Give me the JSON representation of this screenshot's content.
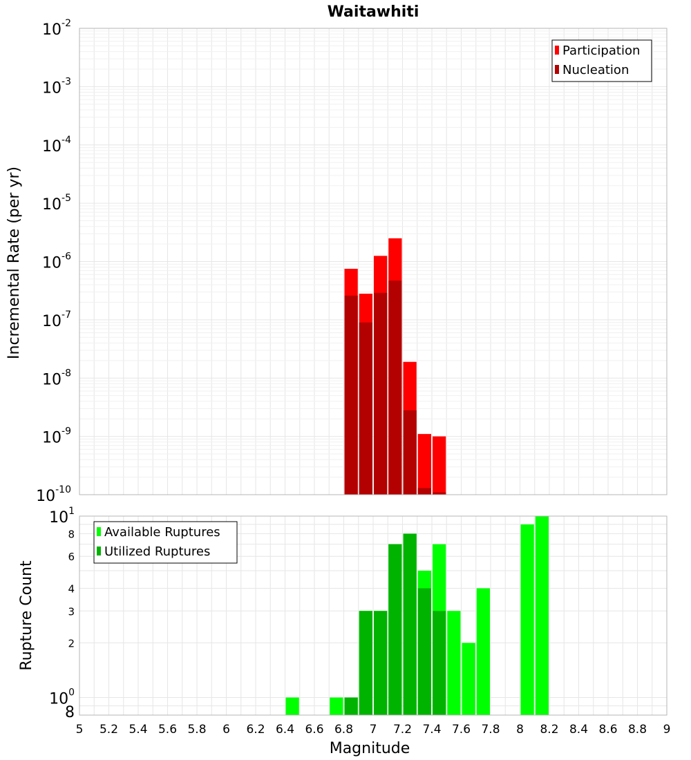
{
  "chart_data": {
    "type": "bar",
    "title": "Waitawhiti",
    "xlabel": "Magnitude",
    "xlim": [
      5,
      9
    ],
    "x_ticks": [
      "5",
      "5.2",
      "5.4",
      "5.6",
      "5.8",
      "6",
      "6.2",
      "6.4",
      "6.6",
      "6.8",
      "7",
      "7.2",
      "7.4",
      "7.6",
      "7.8",
      "8",
      "8.2",
      "8.4",
      "8.6",
      "8.8",
      "9"
    ],
    "bin_width": 0.1,
    "panels": [
      {
        "ylabel": "Incremental Rate (per yr)",
        "y_scale": "log",
        "ylim": [
          1e-10,
          0.01
        ],
        "y_tick_labels": [
          {
            "base": "10",
            "exp": "-2"
          },
          {
            "base": "10",
            "exp": "-3"
          },
          {
            "base": "10",
            "exp": "-4"
          },
          {
            "base": "10",
            "exp": "-5"
          },
          {
            "base": "10",
            "exp": "-6"
          },
          {
            "base": "10",
            "exp": "-7"
          },
          {
            "base": "10",
            "exp": "-8"
          },
          {
            "base": "10",
            "exp": "-9"
          },
          {
            "base": "10",
            "exp": "-10"
          }
        ],
        "legend_position": "top-right",
        "series": [
          {
            "name": "Participation",
            "color": "#ff0000",
            "x": [
              6.85,
              6.95,
              7.05,
              7.15,
              7.25,
              7.35,
              7.45
            ],
            "values": [
              7.5e-07,
              2.8e-07,
              1.25e-06,
              2.5e-06,
              1.9e-08,
              1.1e-09,
              1e-09
            ]
          },
          {
            "name": "Nucleation",
            "color": "#b30000",
            "x": [
              6.85,
              6.95,
              7.05,
              7.15,
              7.25,
              7.35,
              7.45
            ],
            "values": [
              2.6e-07,
              9e-08,
              2.9e-07,
              4.7e-07,
              2.8e-09,
              1.3e-10,
              1.1e-10
            ]
          }
        ]
      },
      {
        "ylabel": "Rupture Count",
        "y_scale": "log",
        "ylim": [
          0.8,
          10
        ],
        "y_tick_labels": [
          {
            "base": "10",
            "exp": "1",
            "value": 10
          },
          {
            "base": "8",
            "exp": "",
            "value": 8
          },
          {
            "base": "6",
            "exp": "",
            "value": 6
          },
          {
            "base": "4",
            "exp": "",
            "value": 4
          },
          {
            "base": "3",
            "exp": "",
            "value": 3
          },
          {
            "base": "2",
            "exp": "",
            "value": 2
          },
          {
            "base": "10",
            "exp": "0",
            "value": 1
          },
          {
            "base": "8",
            "exp": "",
            "value": 0.8
          }
        ],
        "legend_position": "top-left",
        "series": [
          {
            "name": "Available Ruptures",
            "color": "#00ff00",
            "x": [
              6.45,
              6.75,
              6.85,
              6.95,
              7.05,
              7.15,
              7.25,
              7.35,
              7.45,
              7.55,
              7.65,
              7.75,
              8.05,
              8.15
            ],
            "values": [
              1,
              1,
              1,
              3,
              3,
              7,
              8,
              5,
              7,
              3,
              2,
              4,
              9,
              10
            ]
          },
          {
            "name": "Utilized Ruptures",
            "color": "#00b300",
            "x": [
              6.85,
              6.95,
              7.05,
              7.15,
              7.25,
              7.35,
              7.45
            ],
            "values": [
              1,
              3,
              3,
              7,
              8,
              4,
              3
            ]
          }
        ]
      }
    ]
  }
}
